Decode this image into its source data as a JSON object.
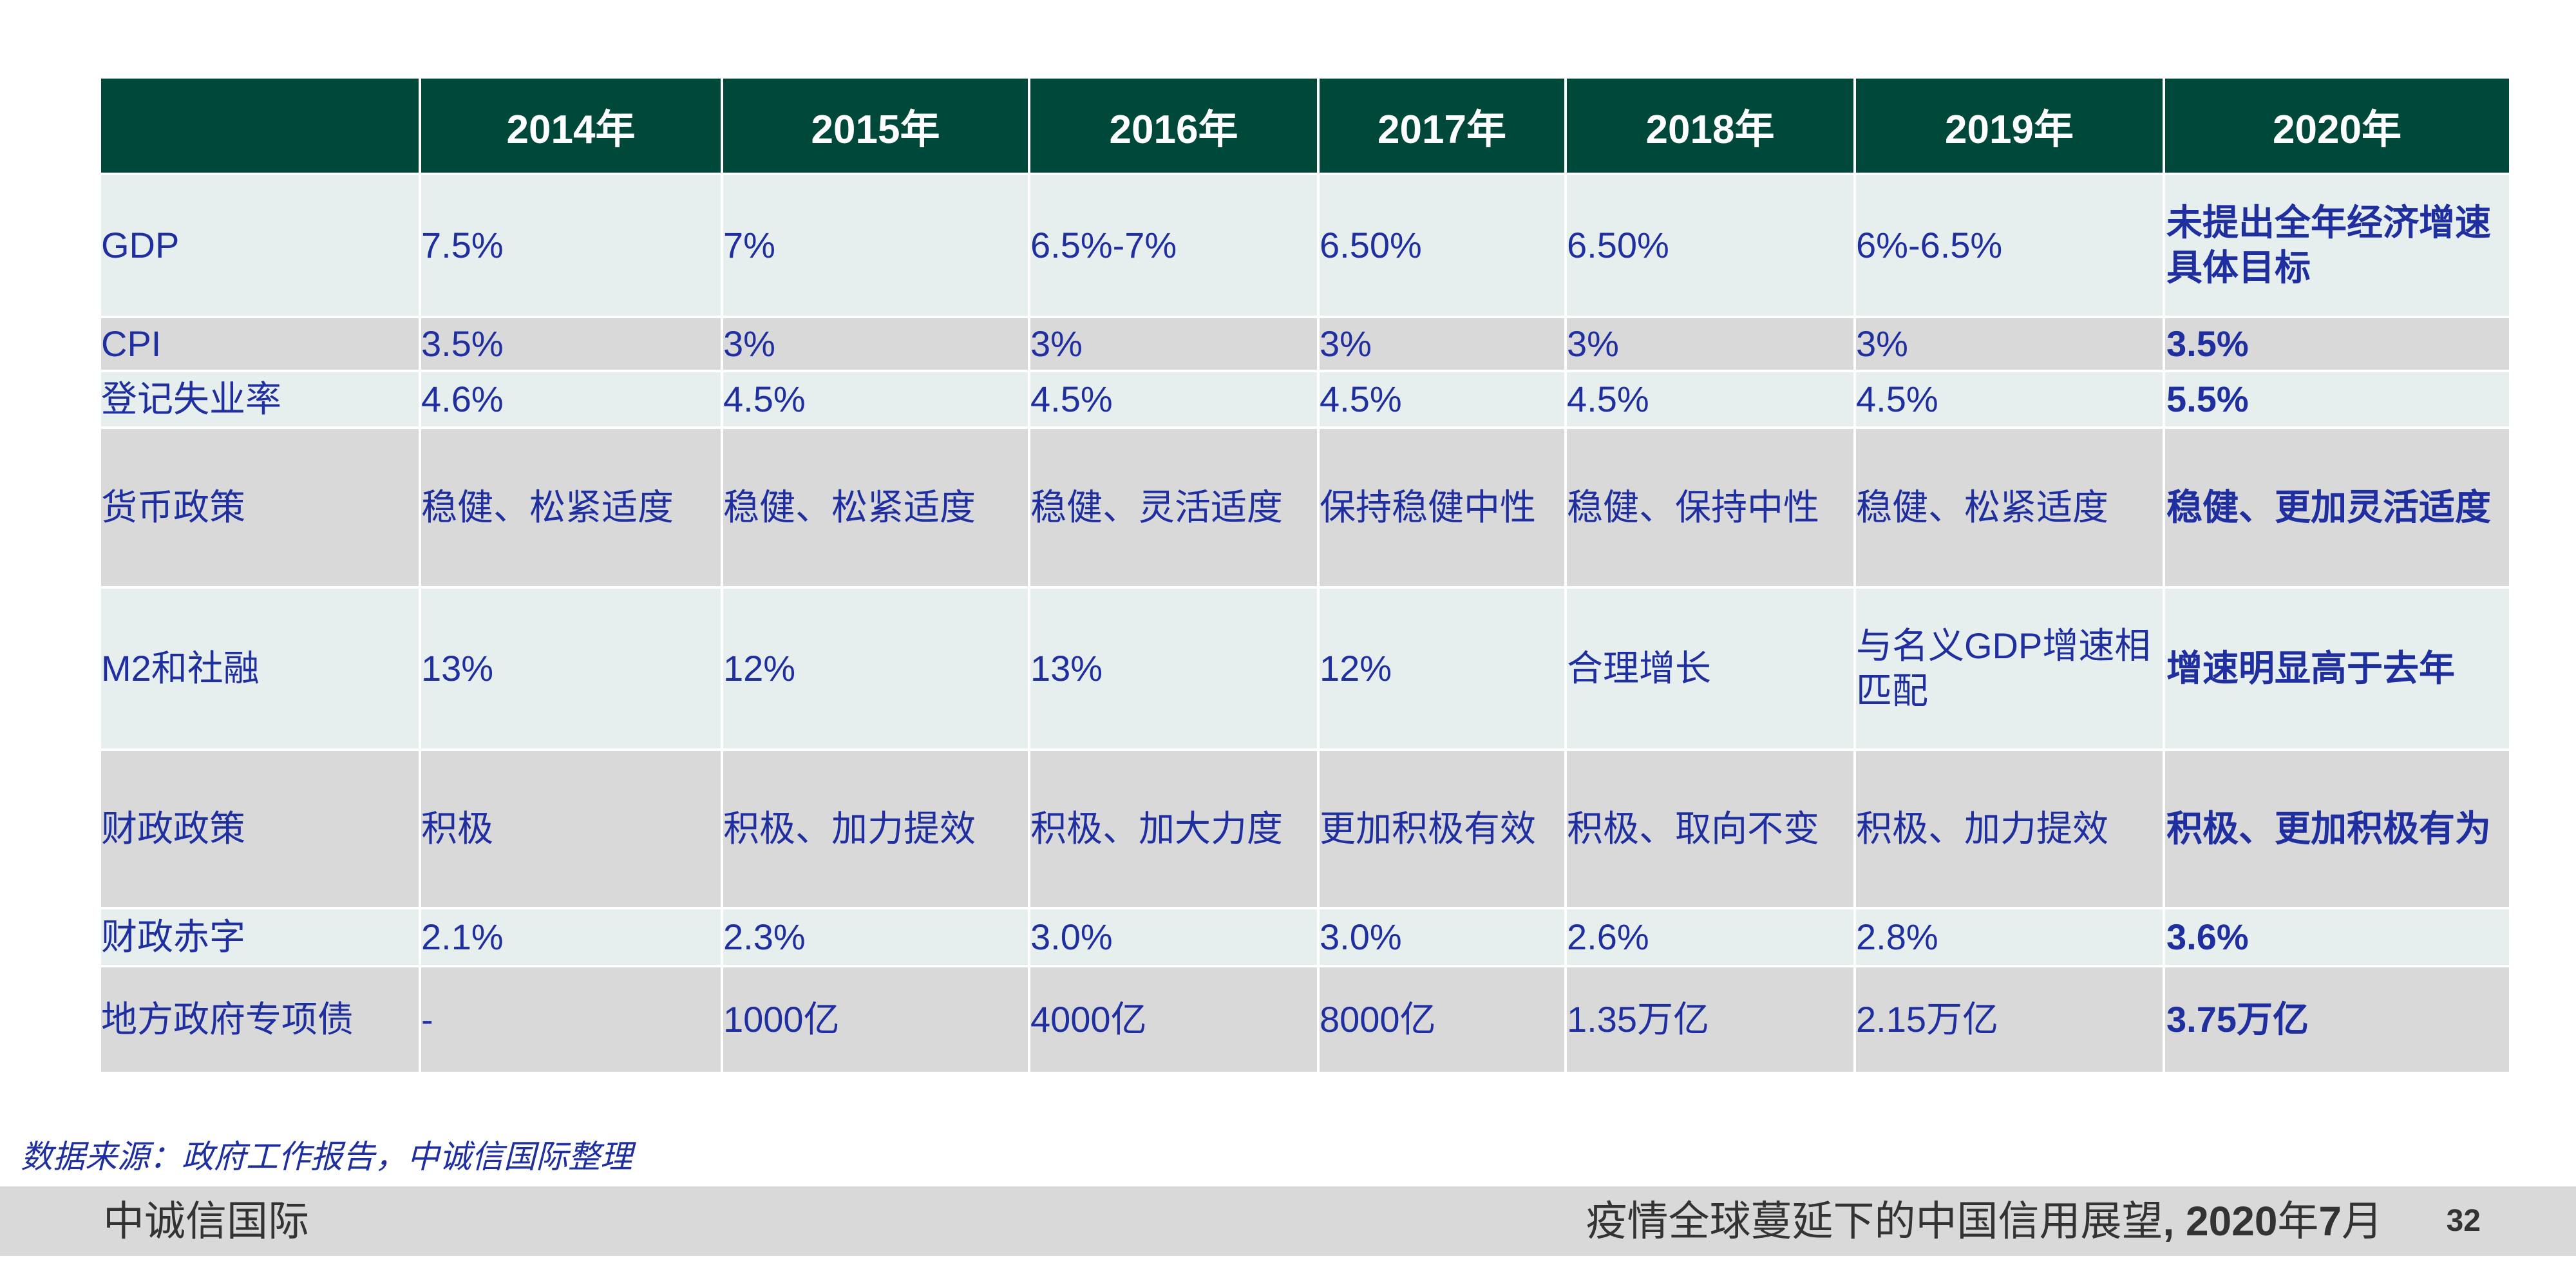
{
  "colors": {
    "header_bg": "#00483a",
    "row_light": "#e6efed",
    "row_gray": "#d9d9d9",
    "text_blue": "#1f2fa0",
    "footer_bg": "#d9d9d9"
  },
  "table": {
    "corner": "",
    "years": [
      "2014年",
      "2015年",
      "2016年",
      "2017年",
      "2018年",
      "2019年",
      "2020年"
    ],
    "rows": [
      {
        "label": "GDP",
        "values": [
          "7.5%",
          "7%",
          "6.5%-7%",
          "6.50%",
          "6.50%",
          "6%-6.5%",
          "未提出全年经济增速具体目标"
        ]
      },
      {
        "label": "CPI",
        "values": [
          "3.5%",
          "3%",
          "3%",
          "3%",
          "3%",
          "3%",
          "3.5%"
        ]
      },
      {
        "label": "登记失业率",
        "values": [
          "4.6%",
          "4.5%",
          "4.5%",
          "4.5%",
          "4.5%",
          "4.5%",
          "5.5%"
        ]
      },
      {
        "label": "货币政策",
        "values": [
          "稳健、松紧适度",
          "稳健、松紧适度",
          "稳健、灵活适度",
          "保持稳健中性",
          "稳健、保持中性",
          "稳健、松紧适度",
          "稳健、更加灵活适度"
        ]
      },
      {
        "label": "M2和社融",
        "values": [
          "13%",
          "12%",
          "13%",
          "12%",
          "合理增长",
          "与名义GDP增速相匹配",
          "增速明显高于去年"
        ]
      },
      {
        "label": "财政政策",
        "values": [
          "积极",
          "积极、加力提效",
          "积极、加大力度",
          "更加积极有效",
          "积极、取向不变",
          "积极、加力提效",
          "积极、更加积极有为"
        ]
      },
      {
        "label": "财政赤字",
        "values": [
          "2.1%",
          "2.3%",
          "3.0%",
          "3.0%",
          "2.6%",
          "2.8%",
          "3.6%"
        ]
      },
      {
        "label": "地方政府专项债",
        "values": [
          "-",
          "1000亿",
          "4000亿",
          "8000亿",
          "1.35万亿",
          "2.15万亿",
          "3.75万亿"
        ]
      }
    ]
  },
  "source_note": "数据来源：政府工作报告，中诚信国际整理",
  "footer": {
    "org": "中诚信国际",
    "title_text": "疫情全球蔓延下的中国信用展望",
    "title_sep": ", ",
    "title_year": "2020",
    "title_year_unit": "年",
    "title_month": "7",
    "title_month_unit": "月",
    "page": "32"
  }
}
